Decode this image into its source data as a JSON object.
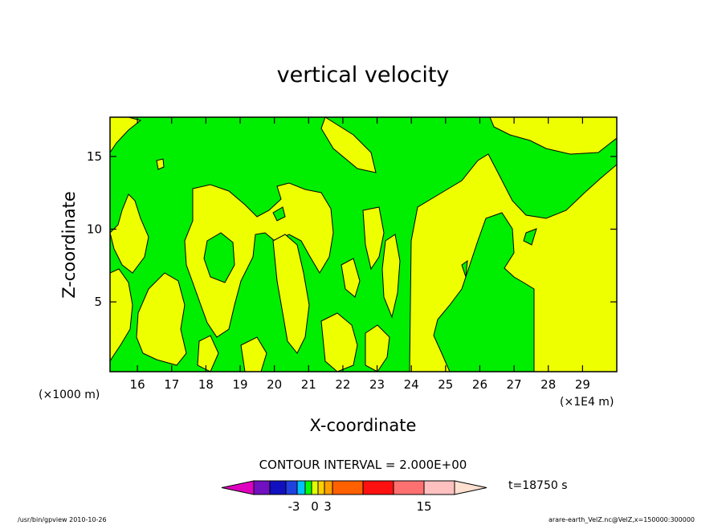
{
  "chart_data": {
    "type": "heatmap",
    "title": "vertical velocity",
    "xlabel": "X-coordinate",
    "ylabel": "Z-coordinate",
    "x_unit_left": "(×1000 m)",
    "x_unit_right": "(×1E4 m)",
    "xlim": [
      15.2,
      30.0
    ],
    "ylim": [
      0.2,
      17.7
    ],
    "x_ticks": [
      16,
      17,
      18,
      19,
      20,
      21,
      22,
      23,
      24,
      25,
      26,
      27,
      28,
      29
    ],
    "y_ticks": [
      5,
      10,
      15
    ],
    "contour_interval_label": "CONTOUR INTERVAL = 2.000E+00",
    "time_label": "t=18750 s",
    "colorbar": {
      "tick_labels": [
        "-3",
        "0",
        "3",
        "15"
      ],
      "colors": [
        "#e000c0",
        "#7010c0",
        "#1010c0",
        "#2040e0",
        "#00c0ff",
        "#00ff00",
        "#e0ff00",
        "#ffd000",
        "#ffa000",
        "#ff6000",
        "#ff1010",
        "#ff7070",
        "#ffc0c0",
        "#ffe0d0"
      ]
    },
    "field_colors": {
      "negative": "#00ee00",
      "positive": "#eeff00"
    },
    "footer_left": "/usr/bin/gpview  2010-10-26",
    "footer_right": "arare-earth_VelZ.nc@VelZ,x=150000:300000"
  }
}
